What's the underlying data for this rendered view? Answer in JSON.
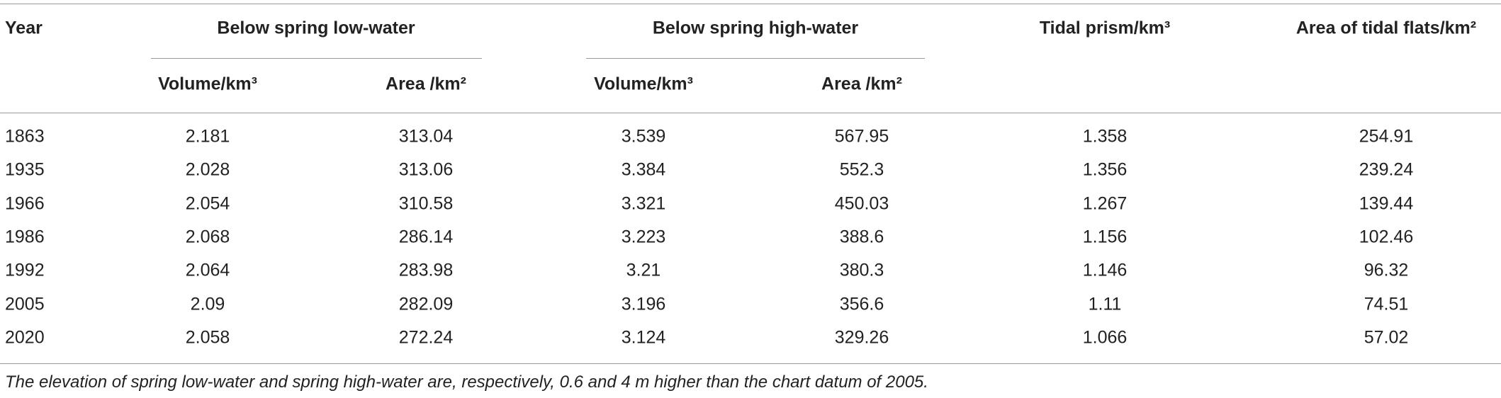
{
  "header": {
    "top": [
      "Year",
      "Below spring low-water",
      "Below spring high-water",
      "Tidal prism/km³",
      "Area of tidal flats/km²"
    ],
    "sub": [
      "Volume/km³",
      "Area /km²",
      "Volume/km³",
      "Area /km²"
    ]
  },
  "table": {
    "rows": [
      [
        "1863",
        "2.181",
        "313.04",
        "3.539",
        "567.95",
        "1.358",
        "254.91"
      ],
      [
        "1935",
        "2.028",
        "313.06",
        "3.384",
        "552.3",
        "1.356",
        "239.24"
      ],
      [
        "1966",
        "2.054",
        "310.58",
        "3.321",
        "450.03",
        "1.267",
        "139.44"
      ],
      [
        "1986",
        "2.068",
        "286.14",
        "3.223",
        "388.6",
        "1.156",
        "102.46"
      ],
      [
        "1992",
        "2.064",
        "283.98",
        "3.21",
        "380.3",
        "1.146",
        "96.32"
      ],
      [
        "2005",
        "2.09",
        "282.09",
        "3.196",
        "356.6",
        "1.11",
        "74.51"
      ],
      [
        "2020",
        "2.058",
        "272.24",
        "3.124",
        "329.26",
        "1.066",
        "57.02"
      ]
    ]
  },
  "footnote": "The elevation of spring low-water and spring high-water are, respectively, 0.6 and 4 m higher than the chart datum of 2005."
}
